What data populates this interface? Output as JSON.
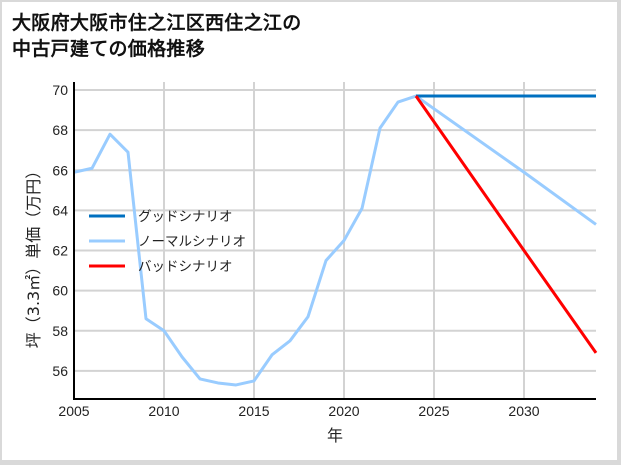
{
  "title_line1": "大阪府大阪市住之江区西住之江の",
  "title_line2": "中古戸建ての価格推移",
  "chart_data": {
    "type": "line",
    "title": "大阪府大阪市住之江区西住之江の中古戸建ての価格推移",
    "xlabel": "年",
    "ylabel": "坪（3.3㎡）単価（万円）",
    "xlim": [
      2005,
      2034
    ],
    "ylim": [
      54.6,
      70.4
    ],
    "xticks": [
      2005,
      2010,
      2015,
      2020,
      2025,
      2030
    ],
    "yticks": [
      56,
      58,
      60,
      62,
      64,
      66,
      68,
      70
    ],
    "grid": true,
    "legend_position": "center-left",
    "series": [
      {
        "name": "グッドシナリオ",
        "color": "#0070c0",
        "x": [
          2024,
          2034
        ],
        "values": [
          69.7,
          69.7
        ]
      },
      {
        "name": "ノーマルシナリオ",
        "color": "#99ccff",
        "x": [
          2005,
          2006,
          2007,
          2008,
          2009,
          2010,
          2011,
          2012,
          2013,
          2014,
          2015,
          2016,
          2017,
          2018,
          2019,
          2020,
          2021,
          2022,
          2023,
          2024,
          2030,
          2034
        ],
        "values": [
          65.9,
          66.1,
          67.8,
          66.9,
          58.6,
          58.0,
          56.7,
          55.6,
          55.4,
          55.3,
          55.5,
          56.8,
          57.5,
          58.7,
          61.5,
          62.5,
          64.1,
          68.1,
          69.4,
          69.7,
          65.9,
          63.3
        ]
      },
      {
        "name": "バッドシナリオ",
        "color": "#ff0000",
        "x": [
          2024,
          2030,
          2034
        ],
        "values": [
          69.7,
          62.0,
          56.9
        ]
      }
    ]
  }
}
